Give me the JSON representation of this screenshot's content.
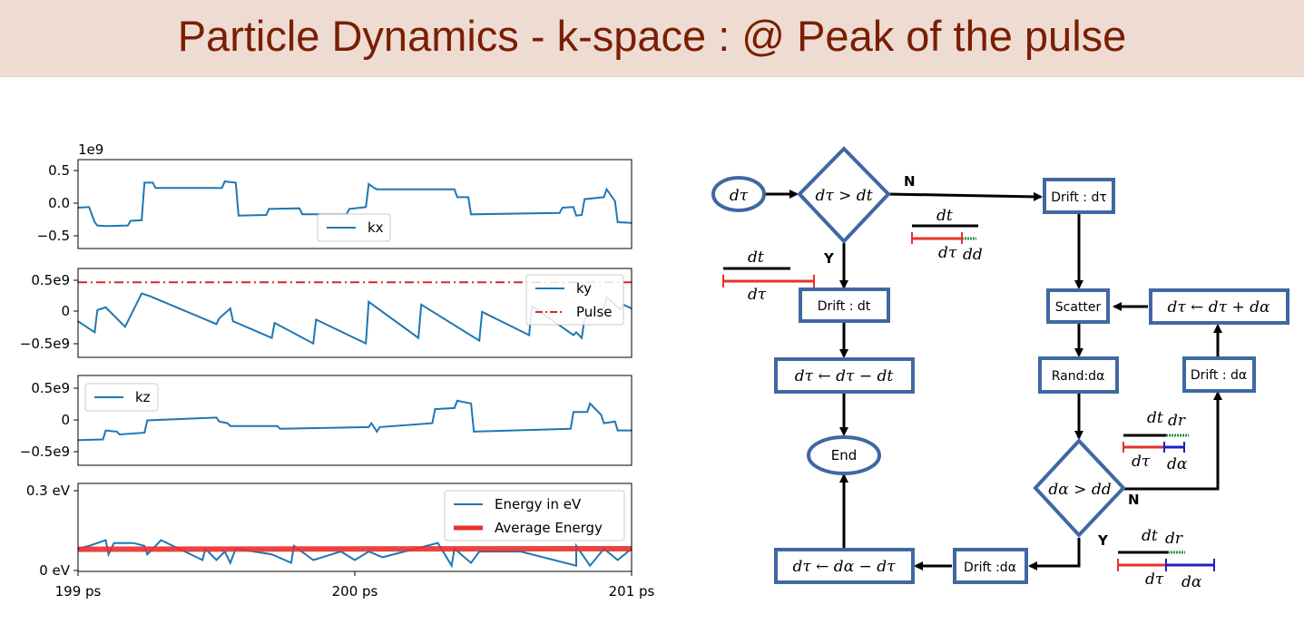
{
  "slide": {
    "title": "Particle Dynamics - k-space : @ Peak of the pulse",
    "title_color": "#7a1e00",
    "title_bg": "#eedcd3"
  },
  "chart_data": [
    {
      "type": "line",
      "panel": "kx",
      "offset_label": "1e9",
      "yticks": [
        "0.5",
        "0.0",
        "−0.5"
      ],
      "ylim": [
        -0.7,
        0.65
      ],
      "legend": [
        "kx"
      ],
      "legend_position": "center",
      "series": [
        {
          "name": "kx",
          "color": "#1f77b4",
          "x": [
            199.0,
            199.04,
            199.06,
            199.07,
            199.1,
            199.18,
            199.19,
            199.23,
            199.24,
            199.27,
            199.28,
            199.52,
            199.53,
            199.57,
            199.58,
            199.68,
            199.69,
            199.8,
            199.81,
            199.97,
            199.98,
            200.04,
            200.05,
            200.07,
            200.08,
            200.36,
            200.37,
            200.41,
            200.42,
            200.74,
            200.75,
            200.79,
            200.8,
            200.82,
            200.83,
            200.9,
            200.91,
            200.94,
            200.95,
            201.0
          ],
          "y": [
            -0.08,
            -0.07,
            -0.3,
            -0.35,
            -0.36,
            -0.35,
            -0.28,
            -0.27,
            0.3,
            0.3,
            0.22,
            0.22,
            0.32,
            0.3,
            -0.2,
            -0.19,
            -0.1,
            -0.09,
            -0.18,
            -0.18,
            -0.1,
            -0.07,
            0.28,
            0.22,
            0.2,
            0.2,
            0.08,
            0.08,
            -0.18,
            -0.16,
            -0.08,
            -0.07,
            -0.2,
            -0.19,
            0.05,
            0.08,
            0.2,
            0.02,
            -0.3,
            -0.31
          ]
        }
      ]
    },
    {
      "type": "line",
      "panel": "ky",
      "yticks": [
        "0.5e9",
        "0",
        "−0.5e9"
      ],
      "ylim": [
        -0.8,
        0.8
      ],
      "legend": [
        "ky",
        "Pulse"
      ],
      "legend_position": "upper right",
      "series": [
        {
          "name": "ky",
          "color": "#1f77b4",
          "x": [
            199.0,
            199.06,
            199.07,
            199.1,
            199.17,
            199.18,
            199.23,
            199.26,
            199.5,
            199.51,
            199.55,
            199.56,
            199.7,
            199.71,
            199.85,
            199.86,
            200.04,
            200.05,
            200.23,
            200.24,
            200.45,
            200.46,
            200.63,
            200.64,
            200.79,
            200.8,
            200.82,
            200.83,
            200.9,
            200.91,
            200.96,
            200.97,
            201.0
          ],
          "y": [
            -0.15,
            -0.35,
            0.05,
            0.1,
            -0.25,
            -0.15,
            0.35,
            0.3,
            -0.2,
            -0.1,
            0.08,
            -0.15,
            -0.45,
            -0.18,
            -0.55,
            -0.12,
            -0.55,
            0.2,
            -0.45,
            0.15,
            -0.5,
            0.02,
            -0.4,
            0.12,
            -0.4,
            -0.35,
            -0.45,
            -0.1,
            0.1,
            0.28,
            0.06,
            0.15,
            0.08
          ]
        },
        {
          "name": "Pulse",
          "color": "#d62728",
          "x": [
            199.0,
            201.0
          ],
          "y": [
            0.55,
            0.55
          ]
        }
      ]
    },
    {
      "type": "line",
      "panel": "kz",
      "yticks": [
        "0.5e9",
        "0",
        "−0.5e9"
      ],
      "ylim": [
        -0.8,
        0.8
      ],
      "legend": [
        "kz"
      ],
      "legend_position": "upper left",
      "series": [
        {
          "name": "kz",
          "color": "#1f77b4",
          "x": [
            199.0,
            199.09,
            199.1,
            199.14,
            199.15,
            199.24,
            199.25,
            199.5,
            199.51,
            199.54,
            199.55,
            199.72,
            199.73,
            200.05,
            200.06,
            200.08,
            200.09,
            200.28,
            200.29,
            200.36,
            200.37,
            200.42,
            200.43,
            200.78,
            200.79,
            200.84,
            200.85,
            200.89,
            200.9,
            200.94,
            200.95,
            201.0
          ],
          "y": [
            -0.35,
            -0.34,
            -0.18,
            -0.2,
            -0.25,
            -0.22,
            0.0,
            0.05,
            -0.02,
            -0.05,
            -0.1,
            -0.1,
            -0.15,
            -0.12,
            -0.05,
            -0.2,
            -0.12,
            -0.05,
            0.2,
            0.22,
            0.35,
            0.3,
            -0.2,
            -0.15,
            0.15,
            0.15,
            0.3,
            0.1,
            -0.05,
            -0.02,
            -0.18,
            -0.18
          ]
        }
      ]
    },
    {
      "type": "line",
      "panel": "energy",
      "yticks": [
        "0.3 eV",
        "0 eV"
      ],
      "ylim": [
        0,
        0.31
      ],
      "legend": [
        "Energy in eV",
        "Average Energy"
      ],
      "legend_position": "upper right",
      "xticks": [
        "199 ps",
        "200 ps",
        "201 ps"
      ],
      "xlim": [
        199,
        201
      ],
      "series": [
        {
          "name": "Energy in eV",
          "color": "#1f77b4",
          "x": [
            199.0,
            199.04,
            199.1,
            199.11,
            199.13,
            199.2,
            199.24,
            199.25,
            199.3,
            199.45,
            199.46,
            199.5,
            199.53,
            199.55,
            199.57,
            199.7,
            199.77,
            199.78,
            199.85,
            199.95,
            200.0,
            200.05,
            200.1,
            200.3,
            200.35,
            200.36,
            200.42,
            200.45,
            200.6,
            200.8,
            200.8,
            200.85,
            200.9,
            200.95,
            201.0
          ],
          "y": [
            0.08,
            0.09,
            0.11,
            0.06,
            0.1,
            0.1,
            0.09,
            0.06,
            0.11,
            0.04,
            0.08,
            0.04,
            0.07,
            0.03,
            0.08,
            0.06,
            0.03,
            0.09,
            0.04,
            0.07,
            0.04,
            0.07,
            0.05,
            0.1,
            0.02,
            0.08,
            0.03,
            0.07,
            0.07,
            0.02,
            0.09,
            0.02,
            0.08,
            0.04,
            0.08
          ]
        },
        {
          "name": "Average Energy",
          "color": "#e8302c",
          "x": [
            199.0,
            201.0
          ],
          "y": [
            0.078,
            0.08
          ]
        }
      ]
    }
  ],
  "flowchart": {
    "box_border": "#3f68a3",
    "nodes": {
      "start": "dτ",
      "cond1": "dτ > dt",
      "drift_dtau": "Drift : dτ",
      "drift_dt": "Drift : dt",
      "update1": "dτ ← dτ − dt",
      "end": "End",
      "scatter": "Scatter",
      "update2": "dτ ← dτ + dα",
      "rand": "Rand:dα",
      "drift_dalpha_right": "Drift : dα",
      "cond2": "dα > dd",
      "drift_dalpha_bottom": "Drift :dα",
      "update3": "dτ ← dα − dτ"
    },
    "edge_labels": {
      "n1": "N",
      "y1": "Y",
      "n2": "N",
      "y2": "Y"
    },
    "bar_labels": {
      "dt": "dt",
      "dtau": "dτ",
      "dd": "dd",
      "dr": "dr",
      "dalpha": "dα"
    }
  }
}
